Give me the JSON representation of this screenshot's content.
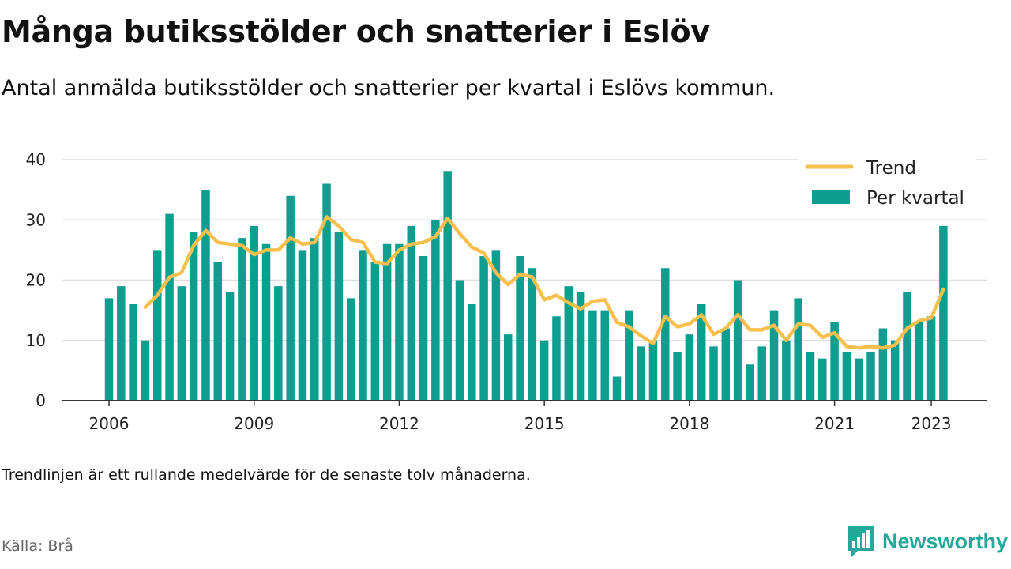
{
  "header": {
    "title": "Många butiksstölder och snatterier i Eslöv",
    "subtitle": "Antal anmälda butiksstölder och snatterier per kvartal i Eslövs kommun."
  },
  "footer": {
    "note": "Trendlinjen är ett rullande medelvärde för de senaste tolv månaderna.",
    "source": "Källa: Brå",
    "brand": "Newsworthy"
  },
  "colors": {
    "bars": "#0e9e90",
    "trend": "#f7c04e",
    "grid": "#dddddd",
    "axis": "#333333",
    "brand": "#23a99a"
  },
  "chart_data": {
    "type": "bar",
    "x_label_years": [
      "2006",
      "2009",
      "2012",
      "2015",
      "2018",
      "2021",
      "2023"
    ],
    "ylim": [
      0,
      40
    ],
    "yticks": [
      0,
      10,
      20,
      30,
      40
    ],
    "grid": true,
    "legend_position": "top-right",
    "legend": [
      "Trend",
      "Per kvartal"
    ],
    "first_period": "2006 Q1",
    "series": [
      {
        "name": "Per kvartal",
        "type": "bar",
        "values": [
          17,
          19,
          16,
          10,
          25,
          31,
          19,
          28,
          35,
          23,
          18,
          27,
          29,
          26,
          19,
          34,
          25,
          27,
          36,
          28,
          17,
          25,
          23,
          26,
          26,
          29,
          24,
          30,
          38,
          20,
          16,
          24,
          25,
          11,
          24,
          22,
          10,
          14,
          19,
          18,
          15,
          15,
          4,
          15,
          9,
          10,
          22,
          8,
          11,
          16,
          9,
          12,
          20,
          6,
          9,
          15,
          10,
          17,
          8,
          7,
          13,
          8,
          7,
          8,
          12,
          10,
          18,
          13,
          14,
          29
        ]
      },
      {
        "name": "Trend",
        "type": "line",
        "values": [
          null,
          null,
          null,
          15.5,
          17.5,
          20.5,
          21.25,
          25.75,
          28.25,
          26.25,
          26,
          25.75,
          24.25,
          25,
          25,
          27,
          26,
          26.25,
          30.5,
          29,
          26.75,
          26.25,
          23,
          22.75,
          25,
          26,
          26.25,
          27.25,
          30.25,
          27.75,
          25.5,
          24.5,
          21.25,
          19.25,
          21,
          20.5,
          16.75,
          17.5,
          16.25,
          15.25,
          16.5,
          16.75,
          13,
          12.25,
          10.75,
          9.5,
          14,
          12.25,
          12.75,
          14.25,
          11,
          12,
          14.25,
          11.75,
          11.75,
          12.5,
          10,
          12.75,
          12.5,
          10.5,
          11.25,
          9,
          8.75,
          9,
          8.75,
          9.25,
          12,
          13.25,
          13.75,
          18.5
        ]
      }
    ]
  }
}
